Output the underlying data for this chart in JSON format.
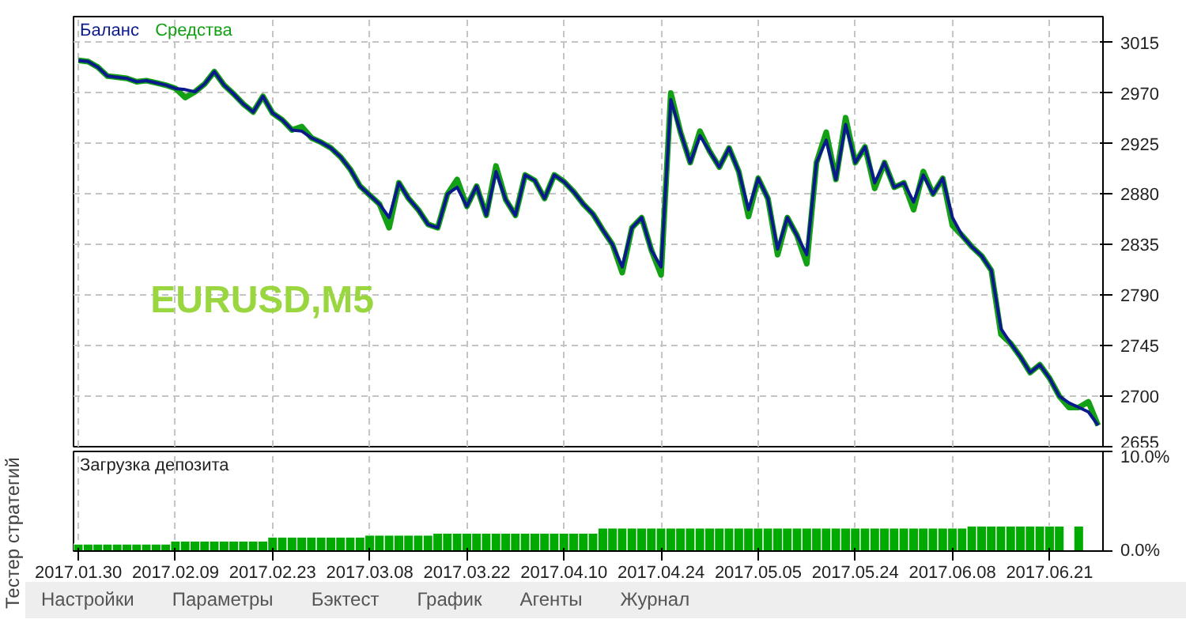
{
  "chart_data": [
    {
      "type": "line",
      "legend": "top left",
      "grid": true,
      "tick_labels": "y",
      "line_style": "solid",
      "ylim": [
        2655,
        3038
      ],
      "yticks": [
        2655,
        2700,
        2745,
        2790,
        2835,
        2880,
        2925,
        2970,
        3015
      ],
      "annotations": [
        "EURUSD,M5"
      ],
      "categories": [
        "2017.01.30",
        null,
        null,
        null,
        null,
        null,
        null,
        null,
        null,
        null,
        "2017.02.09",
        null,
        null,
        null,
        null,
        null,
        null,
        null,
        null,
        null,
        "2017.02.23",
        null,
        null,
        null,
        null,
        null,
        null,
        null,
        null,
        null,
        "2017.03.08",
        null,
        null,
        null,
        null,
        null,
        null,
        null,
        null,
        null,
        "2017.03.22",
        null,
        null,
        null,
        null,
        null,
        null,
        null,
        null,
        null,
        "2017.04.10",
        null,
        null,
        null,
        null,
        null,
        null,
        null,
        null,
        null,
        "2017.04.24",
        null,
        null,
        null,
        null,
        null,
        null,
        null,
        null,
        null,
        "2017.05.05",
        null,
        null,
        null,
        null,
        null,
        null,
        null,
        null,
        null,
        "2017.05.24",
        null,
        null,
        null,
        null,
        null,
        null,
        null,
        null,
        null,
        "2017.06.08",
        null,
        null,
        null,
        null,
        null,
        null,
        null,
        null,
        null,
        "2017.06.21",
        null,
        null,
        null,
        null,
        null
      ],
      "series": [
        {
          "name": "Средства",
          "color": "#14a014",
          "values": [
            2999,
            2998,
            2993,
            2985,
            2984,
            2983,
            2980,
            2981,
            2979,
            2977,
            2974,
            2966,
            2971,
            2978,
            2989,
            2977,
            2969,
            2960,
            2953,
            2967,
            2952,
            2946,
            2937,
            2940,
            2930,
            2926,
            2921,
            2913,
            2902,
            2887,
            2879,
            2871,
            2850,
            2890,
            2876,
            2866,
            2853,
            2850,
            2880,
            2893,
            2869,
            2887,
            2861,
            2905,
            2875,
            2861,
            2897,
            2892,
            2876,
            2897,
            2891,
            2882,
            2871,
            2862,
            2848,
            2835,
            2810,
            2850,
            2859,
            2830,
            2808,
            2970,
            2935,
            2908,
            2936,
            2918,
            2904,
            2921,
            2900,
            2860,
            2894,
            2876,
            2826,
            2859,
            2843,
            2818,
            2908,
            2935,
            2893,
            2948,
            2908,
            2922,
            2885,
            2908,
            2886,
            2890,
            2866,
            2900,
            2880,
            2894,
            2852,
            2843,
            2833,
            2825,
            2812,
            2755,
            2747,
            2735,
            2721,
            2728,
            2716,
            2700,
            2690,
            2690,
            2695,
            2674
          ]
        },
        {
          "name": "Баланс",
          "color": "#0a1a8c",
          "values": [
            2999,
            2998,
            2993,
            2985,
            2984,
            2983,
            2980,
            2981,
            2979,
            2977,
            2974,
            2973,
            2971,
            2978,
            2989,
            2977,
            2969,
            2960,
            2953,
            2967,
            2952,
            2946,
            2937,
            2936,
            2930,
            2926,
            2921,
            2913,
            2902,
            2887,
            2879,
            2871,
            2859,
            2890,
            2876,
            2866,
            2853,
            2850,
            2880,
            2886,
            2869,
            2887,
            2861,
            2900,
            2875,
            2861,
            2897,
            2892,
            2876,
            2897,
            2891,
            2882,
            2871,
            2862,
            2848,
            2835,
            2815,
            2850,
            2859,
            2830,
            2815,
            2964,
            2935,
            2908,
            2932,
            2918,
            2904,
            2921,
            2900,
            2866,
            2894,
            2876,
            2831,
            2859,
            2843,
            2826,
            2908,
            2928,
            2893,
            2942,
            2908,
            2922,
            2890,
            2908,
            2886,
            2890,
            2873,
            2897,
            2880,
            2894,
            2859,
            2843,
            2833,
            2825,
            2812,
            2760,
            2747,
            2735,
            2721,
            2728,
            2716,
            2700,
            2694,
            2690,
            2686,
            2674
          ]
        }
      ]
    },
    {
      "type": "bar",
      "title": "Загрузка депозита",
      "grid": "x",
      "ylim": [
        0,
        10
      ],
      "yticks": [
        {
          "value": 0,
          "label": "0.0%"
        },
        {
          "value": 10,
          "label": "10.0%"
        }
      ],
      "annotations": [
        "Тестер стратегий",
        "Настройки",
        "Параметры",
        "Бэктест",
        "График",
        "Агенты",
        "Журнал"
      ],
      "categories": [
        "2017.01.30",
        null,
        null,
        null,
        null,
        null,
        null,
        null,
        null,
        null,
        "2017.02.09",
        null,
        null,
        null,
        null,
        null,
        null,
        null,
        null,
        null,
        "2017.02.23",
        null,
        null,
        null,
        null,
        null,
        null,
        null,
        null,
        null,
        "2017.03.08",
        null,
        null,
        null,
        null,
        null,
        null,
        null,
        null,
        null,
        "2017.03.22",
        null,
        null,
        null,
        null,
        null,
        null,
        null,
        null,
        null,
        "2017.04.10",
        null,
        null,
        null,
        null,
        null,
        null,
        null,
        null,
        null,
        "2017.04.24",
        null,
        null,
        null,
        null,
        null,
        null,
        null,
        null,
        null,
        "2017.05.05",
        null,
        null,
        null,
        null,
        null,
        null,
        null,
        null,
        null,
        "2017.05.24",
        null,
        null,
        null,
        null,
        null,
        null,
        null,
        null,
        null,
        "2017.06.08",
        null,
        null,
        null,
        null,
        null,
        null,
        null,
        null,
        null,
        "2017.06.21",
        null,
        null,
        null,
        null,
        null
      ],
      "series": [
        {
          "color": "#00aa00",
          "values": [
            0.7,
            0.7,
            0.7,
            0.7,
            0.7,
            0.7,
            0.7,
            0.7,
            0.7,
            0.7,
            1.0,
            1.0,
            1.0,
            1.0,
            1.0,
            1.0,
            1.0,
            1.0,
            1.0,
            1.0,
            1.4,
            1.4,
            1.4,
            1.4,
            1.4,
            1.4,
            1.4,
            1.4,
            1.4,
            1.4,
            1.6,
            1.6,
            1.6,
            1.6,
            1.6,
            1.6,
            1.6,
            1.8,
            1.8,
            1.8,
            1.8,
            1.8,
            1.8,
            1.8,
            1.8,
            1.8,
            1.8,
            1.8,
            1.8,
            1.8,
            1.8,
            1.8,
            1.8,
            1.8,
            2.3,
            2.3,
            2.3,
            2.3,
            2.3,
            2.3,
            2.3,
            2.3,
            2.3,
            2.3,
            2.3,
            2.3,
            2.3,
            2.3,
            2.3,
            2.3,
            2.3,
            2.3,
            2.3,
            2.3,
            2.3,
            2.3,
            2.3,
            2.3,
            2.3,
            2.3,
            2.3,
            2.3,
            2.3,
            2.3,
            2.3,
            2.3,
            2.3,
            2.3,
            2.3,
            2.3,
            2.3,
            2.3,
            2.5,
            2.5,
            2.5,
            2.5,
            2.5,
            2.5,
            2.5,
            2.5,
            2.5,
            2.5,
            null,
            2.5,
            null,
            null
          ]
        }
      ]
    }
  ]
}
